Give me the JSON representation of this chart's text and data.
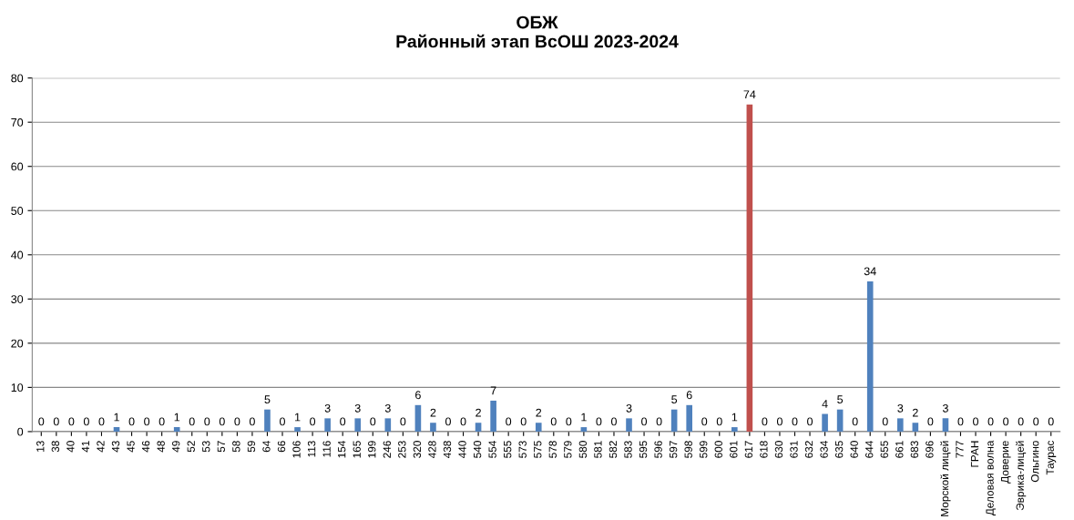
{
  "chart_data": {
    "type": "bar",
    "title": "ОБЖ\nРайонный этап ВсОШ 2023-2024",
    "categories": [
      "13",
      "38",
      "40",
      "41",
      "42",
      "43",
      "45",
      "46",
      "48",
      "49",
      "52",
      "53",
      "57",
      "58",
      "59",
      "64",
      "66",
      "106",
      "113",
      "116",
      "154",
      "165",
      "199",
      "246",
      "253",
      "320",
      "428",
      "438",
      "440",
      "540",
      "554",
      "555",
      "573",
      "575",
      "578",
      "579",
      "580",
      "581",
      "582",
      "583",
      "595",
      "596",
      "597",
      "598",
      "599",
      "600",
      "601",
      "617",
      "618",
      "630",
      "631",
      "632",
      "634",
      "635",
      "640",
      "644",
      "655",
      "661",
      "683",
      "696",
      "Морской лицей",
      "777",
      "ГРАН",
      "Деловая волна",
      "Доверие",
      "Эврика-лицей",
      "Ольгино",
      "Таурас"
    ],
    "values": [
      0,
      0,
      0,
      0,
      0,
      1,
      0,
      0,
      0,
      1,
      0,
      0,
      0,
      0,
      0,
      5,
      0,
      1,
      0,
      3,
      0,
      3,
      0,
      3,
      0,
      6,
      2,
      0,
      0,
      2,
      7,
      0,
      0,
      2,
      0,
      0,
      1,
      0,
      0,
      3,
      0,
      0,
      5,
      6,
      0,
      0,
      1,
      74,
      0,
      0,
      0,
      0,
      4,
      5,
      0,
      34,
      0,
      3,
      2,
      0,
      3,
      0,
      0,
      0,
      0,
      0,
      0,
      0
    ],
    "colors": [
      "#4f81bd",
      "#4f81bd",
      "#4f81bd",
      "#4f81bd",
      "#4f81bd",
      "#4f81bd",
      "#4f81bd",
      "#4f81bd",
      "#4f81bd",
      "#4f81bd",
      "#4f81bd",
      "#4f81bd",
      "#4f81bd",
      "#4f81bd",
      "#4f81bd",
      "#4f81bd",
      "#4f81bd",
      "#4f81bd",
      "#4f81bd",
      "#4f81bd",
      "#4f81bd",
      "#4f81bd",
      "#4f81bd",
      "#4f81bd",
      "#4f81bd",
      "#4f81bd",
      "#4f81bd",
      "#4f81bd",
      "#4f81bd",
      "#4f81bd",
      "#4f81bd",
      "#4f81bd",
      "#4f81bd",
      "#4f81bd",
      "#4f81bd",
      "#4f81bd",
      "#4f81bd",
      "#4f81bd",
      "#4f81bd",
      "#4f81bd",
      "#4f81bd",
      "#4f81bd",
      "#4f81bd",
      "#4f81bd",
      "#4f81bd",
      "#4f81bd",
      "#4f81bd",
      "#c0504d",
      "#4f81bd",
      "#4f81bd",
      "#4f81bd",
      "#4f81bd",
      "#4f81bd",
      "#4f81bd",
      "#4f81bd",
      "#4f81bd",
      "#4f81bd",
      "#4f81bd",
      "#4f81bd",
      "#4f81bd",
      "#4f81bd",
      "#4f81bd",
      "#4f81bd",
      "#4f81bd",
      "#4f81bd",
      "#4f81bd",
      "#4f81bd",
      "#4f81bd"
    ],
    "ylim": [
      0,
      80
    ],
    "yticks": [
      0,
      10,
      20,
      30,
      40,
      50,
      60,
      70,
      80
    ],
    "grid": "y",
    "data_labels": true
  }
}
